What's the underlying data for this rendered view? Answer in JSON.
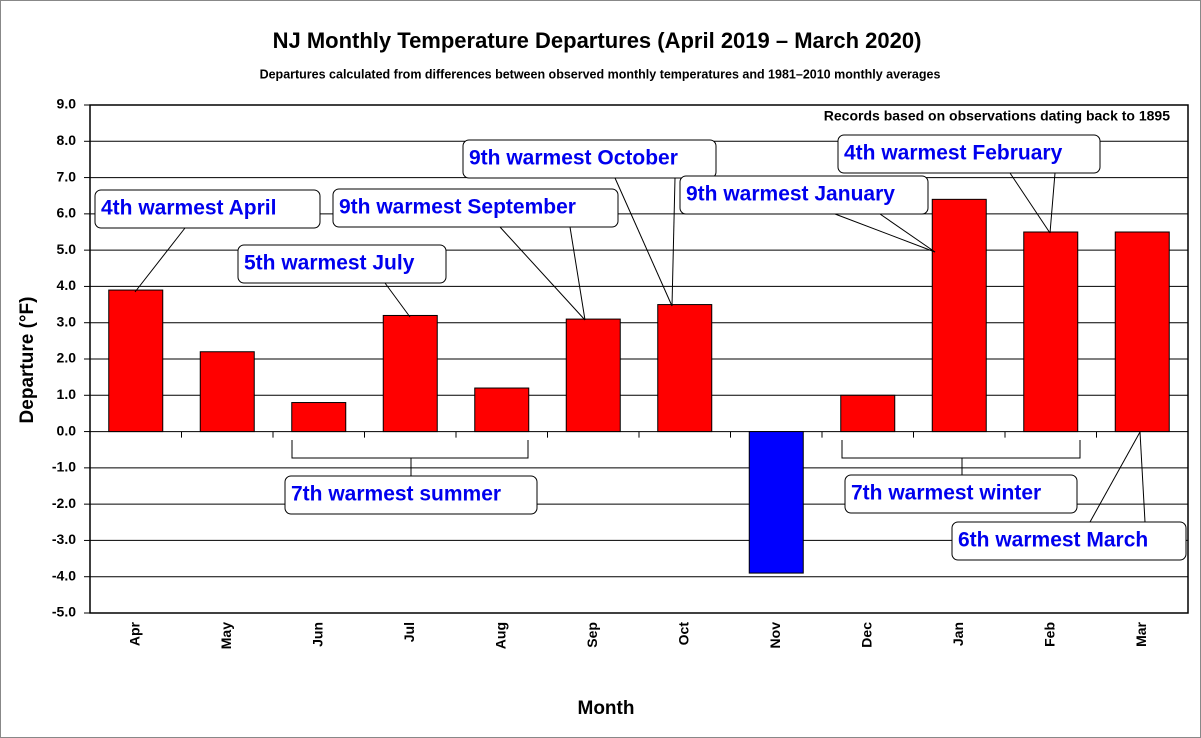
{
  "chart_data": {
    "type": "bar",
    "title": "NJ Monthly  Temperature  Departures (April 2019 – March 2020)",
    "subtitle": "Departures calculated from differences between observed monthly temperatures and 1981–2010 monthly  averages",
    "note": "Records based on observations dating back to 1895",
    "x_label": "Month",
    "y_label": "Departure (°F)",
    "categories": [
      "Apr",
      "May",
      "Jun",
      "Jul",
      "Aug",
      "Sep",
      "Oct",
      "Nov",
      "Dec",
      "Jan",
      "Feb",
      "Mar"
    ],
    "values": [
      3.9,
      2.2,
      0.8,
      3.2,
      1.2,
      3.1,
      3.5,
      -3.9,
      1.0,
      6.4,
      5.5,
      5.5
    ],
    "colors": [
      "#ff0000",
      "#ff0000",
      "#ff0000",
      "#ff0000",
      "#ff0000",
      "#ff0000",
      "#ff0000",
      "#0000ff",
      "#ff0000",
      "#ff0000",
      "#ff0000",
      "#ff0000"
    ],
    "ylim": [
      -5,
      9
    ],
    "yticks": [
      {
        "value": -5,
        "label": "-5.0"
      },
      {
        "value": -4,
        "label": "-4.0"
      },
      {
        "value": -3,
        "label": "-3.0"
      },
      {
        "value": -2,
        "label": "-2.0"
      },
      {
        "value": -1,
        "label": "-1.0"
      },
      {
        "value": 0,
        "label": "0.0"
      },
      {
        "value": 1,
        "label": "1.0"
      },
      {
        "value": 2,
        "label": "2.0"
      },
      {
        "value": 3,
        "label": "3.0"
      },
      {
        "value": 4,
        "label": "4.0"
      },
      {
        "value": 5,
        "label": "5.0"
      },
      {
        "value": 6,
        "label": "6.0"
      },
      {
        "value": 7,
        "label": "7.0"
      },
      {
        "value": 8,
        "label": "8.0"
      },
      {
        "value": 9,
        "label": "9.0"
      }
    ],
    "grid": true,
    "annotations": [
      "4th warmest April",
      "5th warmest July",
      "9th warmest September",
      "9th warmest October",
      "9th warmest January",
      "4th warmest February",
      "7th warmest summer",
      "7th warmest winter",
      "6th warmest March"
    ]
  }
}
